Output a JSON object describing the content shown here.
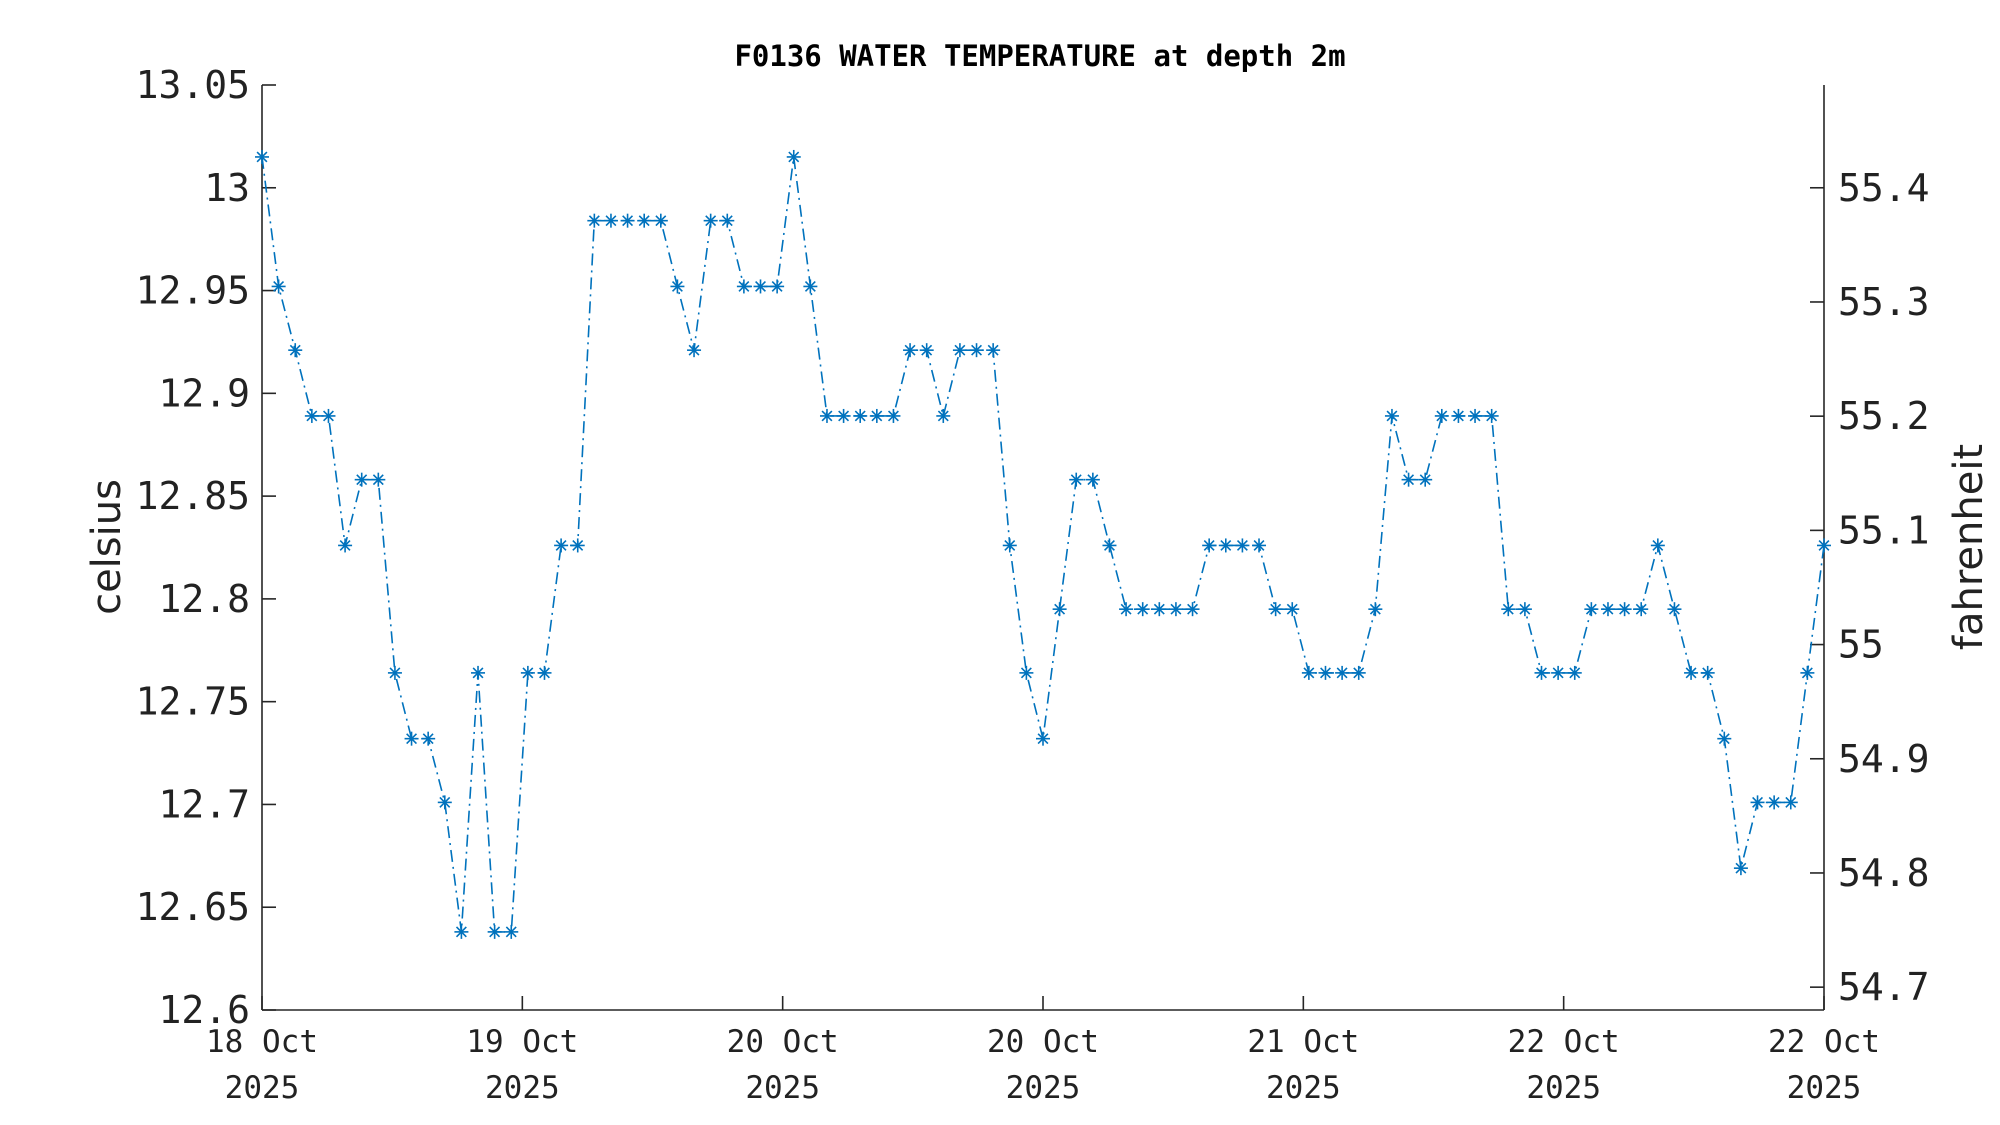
{
  "chart_data": {
    "type": "line",
    "title": "F0136 WATER TEMPERATURE at depth 2m",
    "ylabel": "celsius",
    "y2label": "fahrenheit",
    "ylim": [
      12.6,
      13.05
    ],
    "y2lim": [
      54.68,
      55.49
    ],
    "yticks": [
      "12.6",
      "12.65",
      "12.7",
      "12.75",
      "12.8",
      "12.85",
      "12.9",
      "12.95",
      "13",
      "13.05"
    ],
    "y2ticks": [
      "54.7",
      "54.8",
      "54.9",
      "55",
      "55.1",
      "55.2",
      "55.3",
      "55.4"
    ],
    "xticks": [
      {
        "day": "18 Oct",
        "year": "2025"
      },
      {
        "day": "19 Oct",
        "year": "2025"
      },
      {
        "day": "20 Oct",
        "year": "2025"
      },
      {
        "day": "20 Oct",
        "year": "2025"
      },
      {
        "day": "21 Oct",
        "year": "2025"
      },
      {
        "day": "22 Oct",
        "year": "2025"
      },
      {
        "day": "22 Oct",
        "year": "2025"
      }
    ],
    "marker": "asterisk",
    "line_style": "dash-dot",
    "colors": {
      "series": "#0072BD"
    },
    "series": [
      {
        "values": [
          13.015,
          12.952,
          12.921,
          12.889,
          12.889,
          12.826,
          12.858,
          12.858,
          12.764,
          12.732,
          12.732,
          12.701,
          12.638,
          12.764,
          12.638,
          12.638,
          12.764,
          12.764,
          12.826,
          12.826,
          12.984,
          12.984,
          12.984,
          12.984,
          12.984,
          12.952,
          12.921,
          12.984,
          12.984,
          12.952,
          12.952,
          12.952,
          13.015,
          12.952,
          12.889,
          12.889,
          12.889,
          12.889,
          12.889,
          12.921,
          12.921,
          12.889,
          12.921,
          12.921,
          12.921,
          12.826,
          12.764,
          12.732,
          12.795,
          12.858,
          12.858,
          12.826,
          12.795,
          12.795,
          12.795,
          12.795,
          12.795,
          12.826,
          12.826,
          12.826,
          12.826,
          12.795,
          12.795,
          12.764,
          12.764,
          12.764,
          12.764,
          12.795,
          12.889,
          12.858,
          12.858,
          12.889,
          12.889,
          12.889,
          12.889,
          12.795,
          12.795,
          12.764,
          12.764,
          12.764,
          12.795,
          12.795,
          12.795,
          12.795,
          12.826,
          12.795,
          12.764,
          12.764,
          12.732,
          12.669,
          12.701,
          12.701,
          12.701,
          12.764,
          12.826
        ]
      }
    ]
  }
}
